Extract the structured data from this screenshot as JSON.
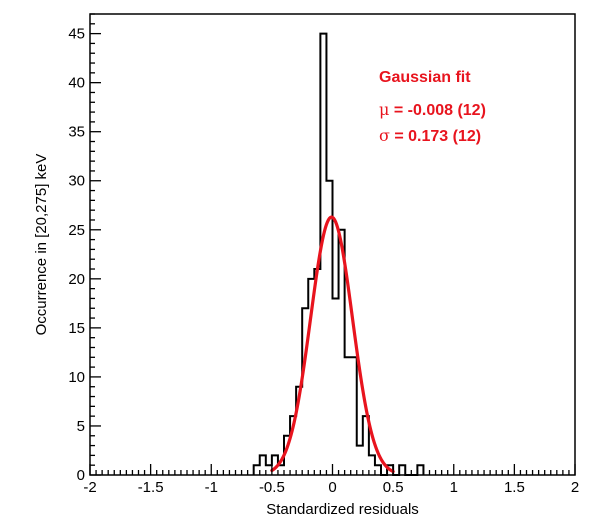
{
  "chart_data": {
    "type": "histogram",
    "xlabel": "Standardized residuals",
    "ylabel": "Occurrence in [20,275] keV",
    "xlim": [
      -2,
      2
    ],
    "ylim": [
      0,
      47
    ],
    "x_ticks": [
      -2,
      -1.5,
      -1,
      -0.5,
      0,
      0.5,
      1,
      1.5,
      2
    ],
    "x_tick_labels": [
      "-2",
      "-1.5",
      "-1",
      "-0.5",
      "0",
      "0.5",
      "1",
      "1.5",
      "2"
    ],
    "y_ticks": [
      0,
      5,
      10,
      15,
      20,
      25,
      30,
      35,
      40,
      45
    ],
    "y_tick_labels": [
      "0",
      "5",
      "10",
      "15",
      "20",
      "25",
      "30",
      "35",
      "40",
      "45"
    ],
    "histogram": {
      "bin_width": 0.05,
      "bin_low_edges": [
        -0.65,
        -0.6,
        -0.55,
        -0.5,
        -0.45,
        -0.4,
        -0.35,
        -0.3,
        -0.25,
        -0.2,
        -0.15,
        -0.1,
        -0.05,
        0,
        0.05,
        0.1,
        0.15,
        0.2,
        0.25,
        0.3,
        0.35,
        0.4,
        0.45,
        0.5,
        0.55,
        0.6,
        0.65,
        0.7
      ],
      "counts": [
        1,
        2,
        1,
        2,
        1,
        4,
        6,
        9,
        17,
        20,
        21,
        45,
        30,
        18,
        25,
        12,
        12,
        3,
        6,
        2,
        1,
        0,
        1,
        0,
        1,
        0,
        0,
        1
      ],
      "color": "#000000"
    },
    "fit": {
      "name": "Gaussian fit",
      "amplitude": 26.3,
      "mu": -0.008,
      "sigma": 0.173,
      "x_range": [
        -0.5,
        0.5
      ],
      "color": "#e8141e"
    },
    "annotations": {
      "title": "Gaussian fit",
      "mu_symbol": "μ",
      "mu_text": " = -0.008 (12)",
      "sigma_symbol": "σ",
      "sigma_text": " = 0.173 (12)",
      "color": "#e8141e"
    }
  }
}
